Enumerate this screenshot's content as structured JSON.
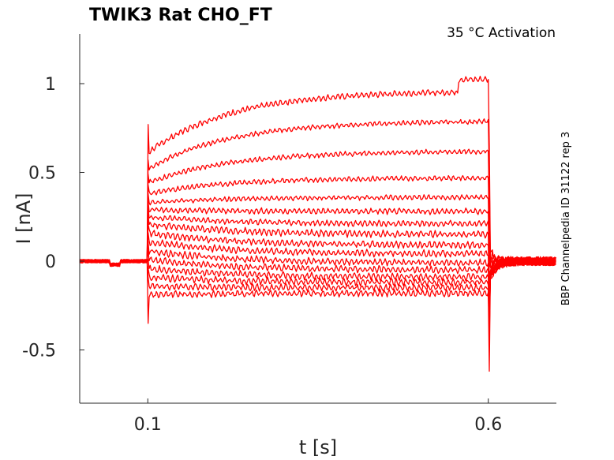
{
  "chart_data": {
    "type": "line",
    "title": "TWIK3  Rat  CHO_FT",
    "annotation": "35 °C  Activation",
    "side_label": "BBP Channelpedia ID 31122 rep 3",
    "xlabel": "t [s]",
    "ylabel": "I [nA]",
    "xlim": [
      0.0,
      0.7
    ],
    "ylim": [
      -0.8,
      1.28
    ],
    "xticks": [
      0.1,
      0.6
    ],
    "xtick_labels": [
      "0.1",
      "0.6"
    ],
    "yticks": [
      -0.5,
      0,
      0.5,
      1
    ],
    "ytick_labels": [
      "-0.5",
      "0",
      "0.5",
      "1"
    ],
    "grid": false,
    "color": "#ff0000",
    "stimulus_window": [
      0.1,
      0.6
    ],
    "series": [
      {
        "start": 0.61,
        "end": 0.96,
        "noise": 0.012
      },
      {
        "start": 0.52,
        "end": 0.79,
        "noise": 0.01
      },
      {
        "start": 0.44,
        "end": 0.62,
        "noise": 0.01
      },
      {
        "start": 0.38,
        "end": 0.47,
        "noise": 0.01
      },
      {
        "start": 0.33,
        "end": 0.36,
        "noise": 0.01
      },
      {
        "start": 0.29,
        "end": 0.28,
        "noise": 0.012
      },
      {
        "start": 0.25,
        "end": 0.21,
        "noise": 0.012
      },
      {
        "start": 0.21,
        "end": 0.15,
        "noise": 0.014
      },
      {
        "start": 0.16,
        "end": 0.09,
        "noise": 0.014
      },
      {
        "start": 0.11,
        "end": 0.04,
        "noise": 0.014
      },
      {
        "start": 0.06,
        "end": -0.01,
        "noise": 0.014
      },
      {
        "start": 0.01,
        "end": -0.05,
        "noise": 0.014
      },
      {
        "start": -0.04,
        "end": -0.09,
        "noise": 0.014
      },
      {
        "start": -0.09,
        "end": -0.12,
        "noise": 0.014
      },
      {
        "start": -0.14,
        "end": -0.15,
        "noise": 0.014
      },
      {
        "start": -0.19,
        "end": -0.18,
        "noise": 0.014
      }
    ]
  }
}
